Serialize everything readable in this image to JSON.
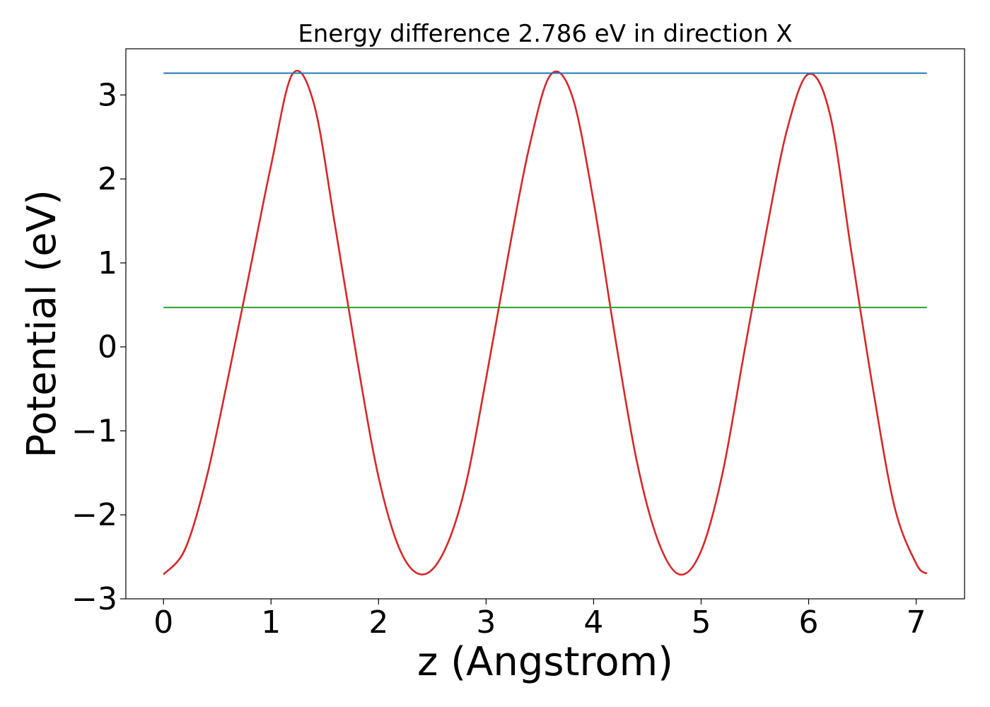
{
  "chart_data": {
    "type": "line",
    "title": "Energy difference 2.786 eV in direction X",
    "xlabel": "z (Angstrom)",
    "ylabel": "Potential (eV)",
    "xlim": [
      -0.35,
      7.45
    ],
    "ylim": [
      -3.0,
      3.55
    ],
    "xticks": [
      0,
      1,
      2,
      3,
      4,
      5,
      6,
      7
    ],
    "xtick_labels": [
      "0",
      "1",
      "2",
      "3",
      "4",
      "5",
      "6",
      "7"
    ],
    "yticks": [
      -3,
      -2,
      -1,
      0,
      1,
      2,
      3
    ],
    "ytick_labels": [
      "−3",
      "−2",
      "−1",
      "0",
      "1",
      "2",
      "3"
    ],
    "grid": false,
    "series": [
      {
        "color": "#d62728",
        "x": [
          0.0,
          0.2,
          0.4,
          0.6,
          0.8,
          1.0,
          1.2,
          1.4,
          1.6,
          1.8,
          2.0,
          2.2,
          2.4,
          2.6,
          2.8,
          3.0,
          3.2,
          3.4,
          3.6,
          3.8,
          4.0,
          4.2,
          4.4,
          4.6,
          4.8,
          5.0,
          5.2,
          5.4,
          5.6,
          5.8,
          6.0,
          6.2,
          6.4,
          6.6,
          6.8,
          7.0,
          7.1
        ],
        "y": [
          -2.71,
          -2.41,
          -1.56,
          -0.37,
          0.89,
          2.16,
          3.25,
          2.89,
          1.41,
          -0.15,
          -1.55,
          -2.42,
          -2.71,
          -2.46,
          -1.7,
          -0.38,
          1.05,
          2.37,
          3.24,
          2.99,
          1.73,
          0.12,
          -1.35,
          -2.31,
          -2.71,
          -2.43,
          -1.5,
          -0.07,
          1.33,
          2.59,
          3.25,
          2.76,
          1.11,
          -0.51,
          -1.91,
          -2.58,
          -2.7
        ]
      },
      {
        "color": "#1f77b4",
        "x": [
          0.0,
          7.1
        ],
        "y": [
          3.26,
          3.26
        ]
      },
      {
        "color": "#2ca02c",
        "x": [
          0.0,
          7.1
        ],
        "y": [
          0.47,
          0.47
        ]
      }
    ]
  }
}
